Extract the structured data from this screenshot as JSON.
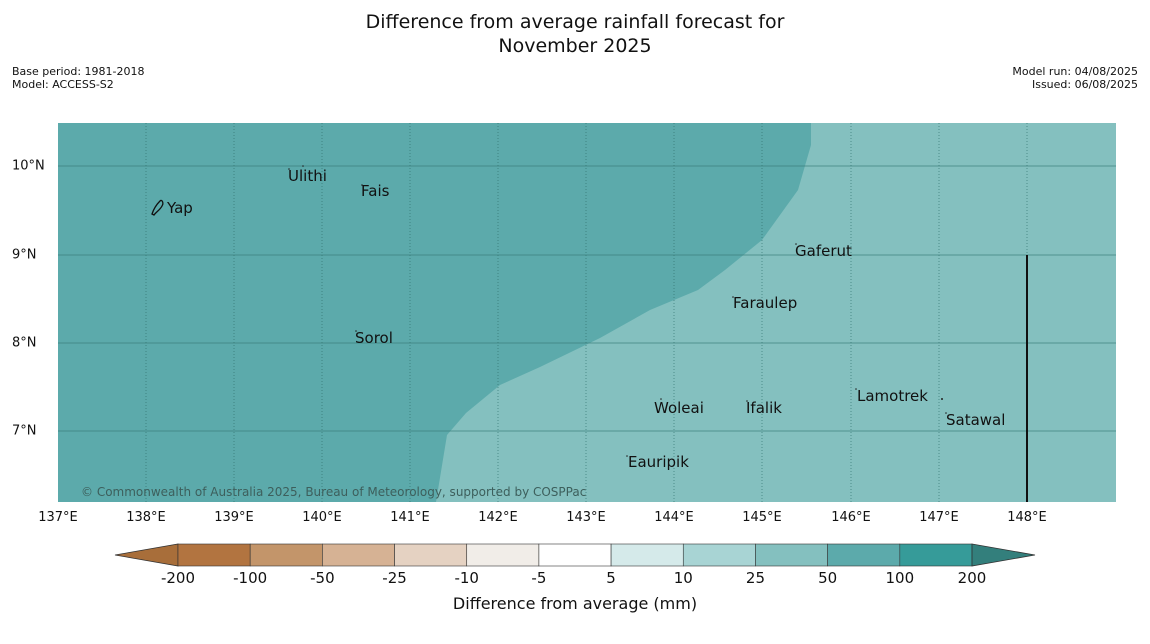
{
  "title_line1": "Difference from average rainfall forecast for",
  "title_line2": "November 2025",
  "meta": {
    "base_period": "Base period: 1981-2018",
    "model": "Model: ACCESS-S2",
    "model_run": "Model run: 04/08/2025",
    "issued": "Issued: 06/08/2025"
  },
  "copyright": "© Commonwealth of Australia 2025, Bureau of Meteorology, supported by COSPPac",
  "lon_labels": [
    "137°E",
    "138°E",
    "139°E",
    "140°E",
    "141°E",
    "142°E",
    "143°E",
    "144°E",
    "145°E",
    "146°E",
    "147°E",
    "148°E"
  ],
  "lat_labels": [
    "10°N",
    "9°N",
    "8°N",
    "7°N"
  ],
  "places": [
    {
      "name": "Yap"
    },
    {
      "name": "Ulithi"
    },
    {
      "name": "Fais"
    },
    {
      "name": "Gaferut"
    },
    {
      "name": "Faraulep"
    },
    {
      "name": "Sorol"
    },
    {
      "name": "Lamotrek"
    },
    {
      "name": "Woleai"
    },
    {
      "name": "Ifalik"
    },
    {
      "name": "Satawal"
    },
    {
      "name": "Eauripik"
    }
  ],
  "colorbar": {
    "title": "Difference from average (mm)",
    "ticks": [
      "-200",
      "-100",
      "-50",
      "-25",
      "-10",
      "-5",
      "5",
      "10",
      "25",
      "50",
      "100",
      "200"
    ],
    "colors": [
      "#a86e3a",
      "#b27440",
      "#c3956a",
      "#d6b294",
      "#e5d2c2",
      "#f1ede8",
      "#ffffff",
      "#d5eaea",
      "#a8d4d4",
      "#84c0bf",
      "#5caaab",
      "#369b99",
      "#337f7c"
    ]
  },
  "legend_map_colors": {
    "zone_100_200": "#5caaab",
    "zone_50_100": "#84c0bf"
  }
}
